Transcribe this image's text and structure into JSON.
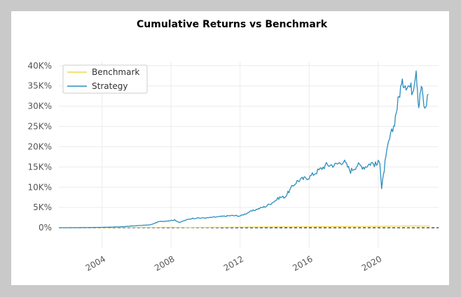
{
  "chart_data": {
    "type": "line",
    "title": "Cumulative Returns vs Benchmark",
    "xlabel": "",
    "ylabel": "",
    "xlim": [
      2001.5,
      2023.5
    ],
    "ylim": [
      -5,
      41
    ],
    "x_ticks": [
      2004,
      2008,
      2012,
      2016,
      2020
    ],
    "x_tick_labels": [
      "2004",
      "2008",
      "2012",
      "2016",
      "2020"
    ],
    "y_ticks": [
      0,
      5,
      10,
      15,
      20,
      25,
      30,
      35,
      40
    ],
    "y_tick_labels": [
      "0%",
      "5K%",
      "10K%",
      "15K%",
      "20K%",
      "25K%",
      "30K%",
      "35K%",
      "40K%"
    ],
    "y_unit": "thousand percent",
    "grid": true,
    "legend_position": "top-left",
    "zero_line": true,
    "series": [
      {
        "name": "Benchmark",
        "color": "#f2d64b",
        "x": [
          2001.5,
          2004,
          2008,
          2009,
          2012,
          2016,
          2020,
          2022,
          2023
        ],
        "values": [
          0,
          0.05,
          0.1,
          0.05,
          0.15,
          0.25,
          0.35,
          0.45,
          0.4
        ]
      },
      {
        "name": "Strategy",
        "color": "#2c8ebf",
        "x": [
          2001.5,
          2003,
          2004,
          2005,
          2006,
          2006.8,
          2007.3,
          2007.8,
          2008.2,
          2008.5,
          2008.8,
          2009.2,
          2009.6,
          2010,
          2010.5,
          2011,
          2011.5,
          2012,
          2012.5,
          2013,
          2013.5,
          2014,
          2014.3,
          2014.6,
          2015,
          2015.3,
          2015.6,
          2016,
          2016.5,
          2017,
          2017.5,
          2018,
          2018.4,
          2018.8,
          2019.2,
          2019.6,
          2019.9,
          2020.1,
          2020.2,
          2020.4,
          2020.6,
          2020.9,
          2021.1,
          2021.3,
          2021.5,
          2021.8,
          2022.0,
          2022.2,
          2022.35,
          2022.5,
          2022.7,
          2022.9
        ],
        "values": [
          0,
          0.03,
          0.1,
          0.2,
          0.5,
          0.7,
          1.5,
          1.7,
          1.9,
          1.3,
          1.8,
          2.3,
          2.4,
          2.4,
          2.6,
          2.8,
          3.0,
          2.9,
          3.8,
          4.6,
          5.3,
          6.6,
          7.5,
          7.6,
          10.0,
          11.5,
          12.0,
          12.5,
          14.0,
          15.5,
          15.5,
          16.5,
          14.0,
          15.5,
          15.0,
          16.0,
          15.5,
          16.5,
          9.5,
          16.0,
          21.0,
          25.0,
          30.0,
          34.5,
          36.0,
          35.0,
          34.0,
          39.5,
          30.0,
          35.0,
          29.0,
          33.0
        ]
      }
    ]
  }
}
